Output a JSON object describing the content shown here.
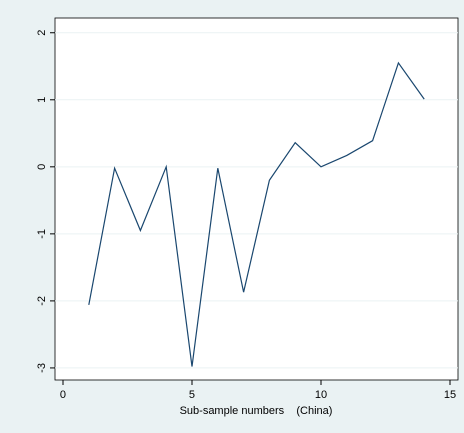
{
  "chart_data": {
    "type": "line",
    "x_label": "Sub-sample numbers    (China)",
    "x": [
      1,
      2,
      3,
      4,
      5,
      6,
      7,
      8,
      9,
      10,
      11,
      12,
      13,
      14
    ],
    "series": [
      {
        "color": "#1a476f",
        "values": [
          -2.06,
          -0.02,
          -0.95,
          0.0,
          -2.98,
          -0.02,
          -1.87,
          -0.2,
          0.36,
          0.0,
          0.17,
          0.39,
          1.55,
          1.01
        ]
      }
    ],
    "xlim": [
      -0.31,
      15.31
    ],
    "xticks": [
      0,
      5,
      10,
      15
    ],
    "ylim": [
      -3.18,
      2.22
    ],
    "yticks": [
      -3,
      -2,
      -1,
      0,
      1,
      2
    ],
    "grid": true
  }
}
